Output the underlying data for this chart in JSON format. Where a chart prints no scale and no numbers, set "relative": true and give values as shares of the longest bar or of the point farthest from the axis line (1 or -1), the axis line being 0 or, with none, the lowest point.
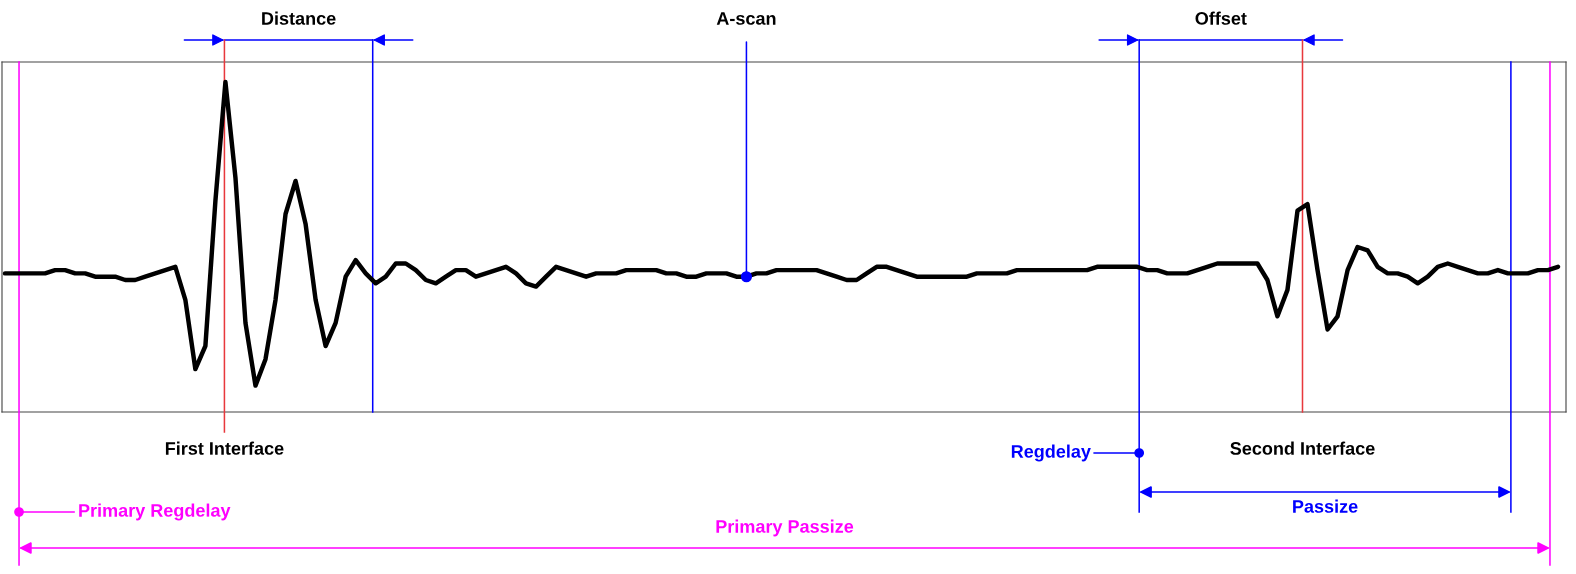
{
  "chart_data": {
    "type": "line",
    "relative": true,
    "categories": [
      null,
      null,
      null,
      null,
      null,
      null,
      null,
      null,
      null,
      null,
      null,
      null,
      null,
      null,
      null,
      null,
      null,
      null,
      null,
      null,
      null,
      null,
      null,
      null,
      null,
      null,
      null,
      null,
      null,
      null,
      null,
      null,
      null,
      null,
      null,
      null,
      null,
      null,
      null,
      null,
      null,
      null,
      null,
      null,
      null,
      null,
      null,
      null,
      null,
      null,
      null,
      null,
      null,
      null,
      null,
      null,
      null,
      null,
      null,
      null,
      null,
      null,
      null,
      null,
      null,
      null,
      null,
      null,
      null,
      null,
      null,
      null,
      null,
      null,
      null,
      null,
      null,
      null,
      null,
      null,
      null,
      null,
      null,
      null,
      null,
      null,
      null,
      null,
      null,
      null,
      null,
      null,
      null,
      null,
      null,
      null,
      null,
      null,
      null,
      null,
      null,
      null,
      null,
      null,
      null,
      null,
      null,
      null,
      null,
      null,
      null,
      null,
      null,
      null,
      null,
      null,
      null,
      null,
      null,
      null,
      null,
      null,
      null,
      null,
      null,
      null,
      null,
      null,
      null,
      null,
      null,
      null,
      null,
      null,
      null,
      null,
      null,
      null,
      null,
      null,
      null,
      null,
      null,
      null,
      null,
      null,
      null,
      null,
      null,
      null,
      null,
      null,
      null,
      null,
      null,
      null
    ],
    "series": [
      {
        "color": "#000000",
        "values": [
          0.42,
          0.42,
          0.42,
          0.42,
          0.42,
          0.43,
          0.43,
          0.42,
          0.42,
          0.41,
          0.41,
          0.41,
          0.4,
          0.4,
          0.41,
          0.42,
          0.43,
          0.44,
          0.34,
          0.13,
          0.2,
          0.64,
          1.0,
          0.71,
          0.27,
          0.08,
          0.16,
          0.34,
          0.6,
          0.7,
          0.57,
          0.34,
          0.2,
          0.27,
          0.41,
          0.46,
          0.42,
          0.39,
          0.41,
          0.45,
          0.45,
          0.43,
          0.4,
          0.39,
          0.41,
          0.43,
          0.43,
          0.41,
          0.42,
          0.43,
          0.44,
          0.42,
          0.39,
          0.38,
          0.41,
          0.44,
          0.43,
          0.42,
          0.41,
          0.42,
          0.42,
          0.42,
          0.43,
          0.43,
          0.43,
          0.43,
          0.42,
          0.42,
          0.41,
          0.41,
          0.42,
          0.42,
          0.42,
          0.41,
          0.41,
          0.42,
          0.42,
          0.43,
          0.43,
          0.43,
          0.43,
          0.43,
          0.42,
          0.41,
          0.4,
          0.4,
          0.42,
          0.44,
          0.44,
          0.43,
          0.42,
          0.41,
          0.41,
          0.41,
          0.41,
          0.41,
          0.41,
          0.42,
          0.42,
          0.42,
          0.42,
          0.43,
          0.43,
          0.43,
          0.43,
          0.43,
          0.43,
          0.43,
          0.43,
          0.44,
          0.44,
          0.44,
          0.44,
          0.44,
          0.43,
          0.43,
          0.42,
          0.42,
          0.42,
          0.43,
          0.44,
          0.45,
          0.45,
          0.45,
          0.45,
          0.45,
          0.4,
          0.29,
          0.37,
          0.61,
          0.63,
          0.43,
          0.25,
          0.29,
          0.43,
          0.5,
          0.49,
          0.44,
          0.42,
          0.42,
          0.41,
          0.39,
          0.41,
          0.44,
          0.45,
          0.44,
          0.43,
          0.42,
          0.42,
          0.43,
          0.42,
          0.42,
          0.42,
          0.43,
          0.43,
          0.44
        ]
      }
    ],
    "annotations": [
      "Distance",
      "A-scan",
      "Offset",
      "First Interface",
      "Regdelay",
      "Second Interface",
      "Primary Regdelay",
      "Passize",
      "Primary Passize"
    ]
  }
}
